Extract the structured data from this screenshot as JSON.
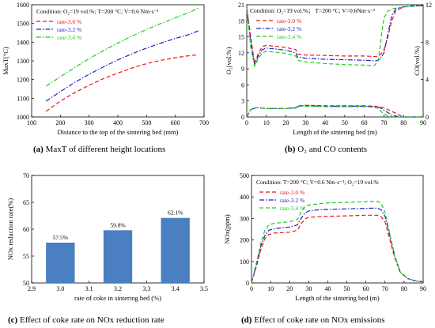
{
  "colors": {
    "red": "#e8161c",
    "blue": "#2020c8",
    "green": "#22cc22",
    "bar": "#4a7fc1"
  },
  "chart_data": [
    {
      "type": "line",
      "caption_letter": "(a)",
      "caption": "MaxT of different height locations",
      "condition": "Condition: O₂=19 vol.%; T=200 °C; V=0.6 Nm·s⁻¹",
      "xlabel": "Distance to the top of the sintering bed (mm)",
      "ylabel": "MaxT(°C)",
      "xlim": [
        100,
        700
      ],
      "ylim": [
        1000,
        1600
      ],
      "xticks": [
        "100",
        "200",
        "300",
        "400",
        "500",
        "600",
        "700"
      ],
      "yticks": [
        "1000",
        "1100",
        "1200",
        "1300",
        "1400",
        "1500",
        "1600"
      ],
      "series": [
        {
          "name": "rate-3.0 %",
          "color": "red",
          "dash": "dash",
          "x": [
            150,
            200,
            250,
            300,
            350,
            400,
            450,
            500,
            550,
            600,
            650,
            680
          ],
          "y": [
            1030,
            1085,
            1130,
            1170,
            1205,
            1235,
            1262,
            1285,
            1303,
            1317,
            1328,
            1333
          ]
        },
        {
          "name": "rate-3.2 %",
          "color": "blue",
          "dash": "dashdot",
          "x": [
            150,
            200,
            250,
            300,
            350,
            400,
            450,
            500,
            550,
            600,
            650,
            680
          ],
          "y": [
            1085,
            1135,
            1185,
            1228,
            1268,
            1305,
            1338,
            1368,
            1395,
            1420,
            1442,
            1460
          ]
        },
        {
          "name": "rate-3.4 %",
          "color": "green",
          "dash": "dashdot",
          "x": [
            150,
            200,
            250,
            300,
            350,
            400,
            450,
            500,
            550,
            600,
            650,
            680
          ],
          "y": [
            1165,
            1215,
            1265,
            1312,
            1355,
            1395,
            1433,
            1468,
            1500,
            1530,
            1560,
            1583
          ]
        }
      ]
    },
    {
      "type": "line",
      "caption_letter": "(b)",
      "caption": "O₂ and CO contents",
      "condition": "Condition: O₂=19 vol.%； T=200 °C; V=0.6Nm·s⁻¹",
      "xlabel": "Length of the sintering bed (m)",
      "ylabel": "O₂(vol.%)",
      "y2label": "CO(vol.%)",
      "xlim": [
        0,
        90
      ],
      "ylim": [
        0,
        21
      ],
      "y2lim": [
        0,
        12
      ],
      "xticks": [
        "0",
        "10",
        "20",
        "30",
        "40",
        "50",
        "60",
        "70",
        "80",
        "90"
      ],
      "yticks": [
        "0",
        "3",
        "6",
        "9",
        "12",
        "15",
        "18",
        "21"
      ],
      "y2ticks": [
        "0",
        "4",
        "8",
        "12"
      ],
      "series": [
        {
          "name": "rate-3.0 %",
          "color": "red",
          "dash": "dash",
          "axis": "O2",
          "x": [
            0,
            2,
            4,
            6,
            8,
            10,
            15,
            20,
            25,
            26,
            30,
            40,
            50,
            60,
            66,
            68,
            70,
            72,
            74,
            76,
            80,
            85,
            90
          ],
          "y": [
            20.5,
            15,
            10,
            12,
            13.2,
            13.4,
            13.2,
            13,
            12.6,
            11.8,
            11.6,
            11.5,
            11.4,
            11.4,
            11.3,
            11.6,
            12.5,
            15,
            18,
            19.8,
            20.6,
            20.8,
            20.8
          ]
        },
        {
          "name": "rate-3.2 %",
          "color": "blue",
          "dash": "dashdot",
          "axis": "O2",
          "x": [
            0,
            2,
            4,
            6,
            8,
            10,
            15,
            20,
            25,
            26,
            30,
            40,
            50,
            60,
            66,
            68,
            70,
            72,
            74,
            76,
            80,
            85,
            90
          ],
          "y": [
            20.5,
            14,
            9.8,
            11.5,
            12.6,
            12.9,
            12.7,
            12.5,
            12,
            11.2,
            11,
            10.8,
            10.7,
            10.6,
            10.5,
            10.8,
            12,
            15.5,
            19,
            20.2,
            20.6,
            20.8,
            20.8
          ]
        },
        {
          "name": "rate-3.4 %",
          "color": "green",
          "dash": "dash",
          "axis": "O2",
          "x": [
            0,
            2,
            4,
            6,
            8,
            10,
            15,
            20,
            25,
            26,
            30,
            40,
            50,
            60,
            65,
            67,
            68,
            69,
            70,
            72,
            75,
            80,
            90
          ],
          "y": [
            20.5,
            13,
            9.5,
            11,
            12,
            12.3,
            12.1,
            11.9,
            11.4,
            10.6,
            10.3,
            10,
            9.8,
            9.7,
            9.6,
            10.5,
            13,
            16,
            18.5,
            19.8,
            20.3,
            20.6,
            20.8
          ]
        },
        {
          "name": "rate-3.0 % CO",
          "color": "red",
          "dash": "dash",
          "axis": "CO",
          "x": [
            0,
            2,
            5,
            10,
            15,
            20,
            25,
            27,
            30,
            40,
            50,
            60,
            65,
            68,
            72,
            76,
            80,
            90
          ],
          "y": [
            0,
            0.8,
            1,
            0.9,
            0.9,
            0.9,
            1,
            1.2,
            1.25,
            1.2,
            1.2,
            1.2,
            1.15,
            1.1,
            0.8,
            0.4,
            0,
            0
          ]
        },
        {
          "name": "rate-3.2 % CO",
          "color": "blue",
          "dash": "dashdot",
          "axis": "CO",
          "x": [
            0,
            2,
            5,
            10,
            15,
            20,
            25,
            27,
            30,
            40,
            50,
            60,
            65,
            68,
            71,
            74,
            78,
            90
          ],
          "y": [
            0,
            0.8,
            1,
            0.9,
            0.9,
            0.9,
            1,
            1.2,
            1.2,
            1.15,
            1.15,
            1.15,
            1.1,
            1,
            0.6,
            0.2,
            0,
            0
          ]
        },
        {
          "name": "rate-3.4 % CO",
          "color": "green",
          "dash": "dash",
          "axis": "CO",
          "x": [
            0,
            2,
            5,
            10,
            15,
            20,
            25,
            27,
            30,
            40,
            50,
            60,
            65,
            67,
            69,
            72,
            76,
            90
          ],
          "y": [
            0,
            0.8,
            1,
            0.9,
            0.9,
            0.9,
            0.95,
            1.15,
            1.15,
            1.1,
            1.1,
            1.1,
            1.05,
            0.9,
            0.5,
            0.1,
            0,
            0
          ]
        }
      ]
    },
    {
      "type": "bar",
      "caption_letter": "(c)",
      "caption": "Effect of coke rate on NOx reduction rate",
      "xlabel": "rate of coke in sintering bed (%)",
      "ylabel": "NOx reduction rate(%)",
      "xlim": [
        2.9,
        3.5
      ],
      "ylim": [
        50,
        70
      ],
      "xticks": [
        "2.9",
        "3.0",
        "3.1",
        "3.2",
        "3.3",
        "3.4",
        "3.5"
      ],
      "yticks": [
        "50",
        "55",
        "60",
        "65",
        "70"
      ],
      "x": [
        3.0,
        3.2,
        3.4
      ],
      "values": [
        57.5,
        59.8,
        62.1
      ],
      "labels": [
        "57.5%",
        "59.8%",
        "62.1%"
      ]
    },
    {
      "type": "line",
      "caption_letter": "(d)",
      "caption": "Effect of coke rate on NOx emissions",
      "condition": "Condition: T=200 °C; V=0.6 Nm·s⁻¹; O₂=19 vol.%",
      "xlabel": "Length of the sintering bed (m)",
      "ylabel": "NOx(ppm)",
      "xlim": [
        0,
        90
      ],
      "ylim": [
        0,
        500
      ],
      "xticks": [
        "0",
        "10",
        "20",
        "30",
        "40",
        "50",
        "60",
        "70",
        "80",
        "90"
      ],
      "yticks": [
        "0",
        "100",
        "200",
        "300",
        "400",
        "500"
      ],
      "series": [
        {
          "name": "rate-3.0 %",
          "color": "red",
          "dash": "dash",
          "x": [
            0,
            3,
            5,
            7,
            9,
            12,
            15,
            20,
            24,
            26,
            28,
            30,
            35,
            40,
            50,
            60,
            66,
            68,
            70,
            72,
            75,
            78,
            82,
            86,
            90
          ],
          "y": [
            0,
            90,
            160,
            205,
            225,
            232,
            234,
            236,
            245,
            275,
            298,
            305,
            308,
            310,
            312,
            315,
            315,
            308,
            285,
            220,
            120,
            50,
            20,
            10,
            5
          ]
        },
        {
          "name": "rate-3.2 %",
          "color": "blue",
          "dash": "dashdot",
          "x": [
            0,
            3,
            5,
            7,
            9,
            12,
            15,
            20,
            24,
            26,
            28,
            30,
            35,
            40,
            50,
            60,
            66,
            68,
            70,
            72,
            75,
            78,
            82,
            86,
            90
          ],
          "y": [
            0,
            100,
            175,
            220,
            245,
            252,
            256,
            260,
            270,
            300,
            325,
            335,
            340,
            342,
            345,
            347,
            348,
            340,
            310,
            240,
            130,
            50,
            20,
            10,
            5
          ]
        },
        {
          "name": "rate-3.4 %",
          "color": "green",
          "dash": "dash",
          "x": [
            0,
            3,
            5,
            7,
            9,
            12,
            15,
            20,
            24,
            26,
            28,
            30,
            35,
            40,
            50,
            60,
            66,
            68,
            70,
            72,
            75,
            78,
            82,
            86,
            90
          ],
          "y": [
            0,
            110,
            190,
            245,
            270,
            278,
            280,
            285,
            295,
            330,
            355,
            362,
            368,
            372,
            375,
            378,
            380,
            370,
            330,
            250,
            130,
            50,
            20,
            10,
            5
          ]
        }
      ]
    }
  ]
}
